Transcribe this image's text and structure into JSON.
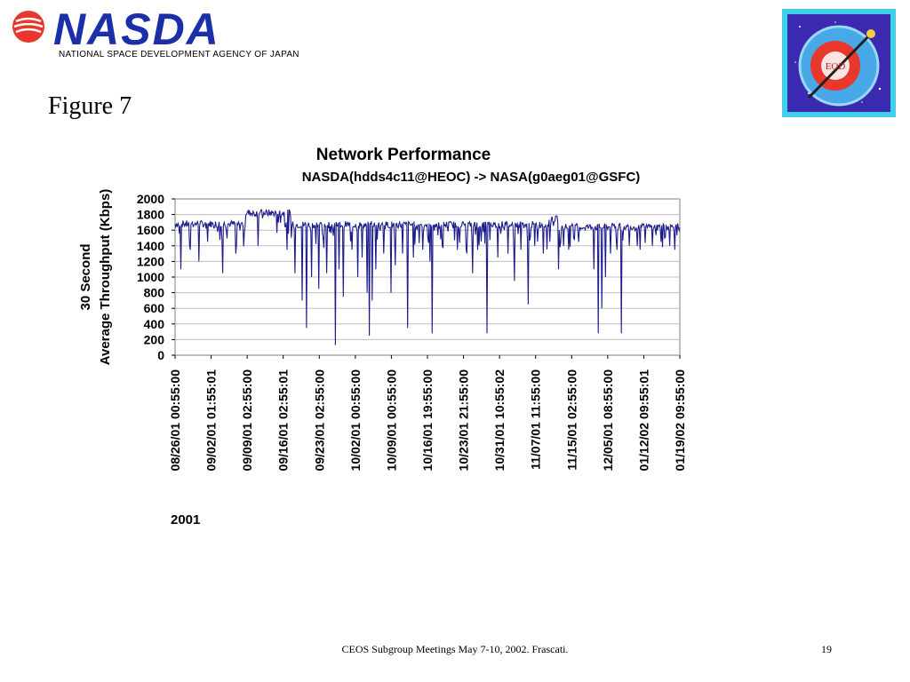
{
  "header": {
    "logo_text": "NASDA",
    "agency_name": "NATIONAL SPACE DEVELOPMENT AGENCY OF JAPAN",
    "badge_text": "EOD",
    "figure_label": "Figure 7"
  },
  "colors": {
    "logo_blue": "#1a2fa8",
    "logo_red": "#e8382c",
    "series_line": "#1c1c8a",
    "plot_border": "#808080",
    "gridline": "#c0c0c0",
    "badge_bg": "#3a2ab0",
    "badge_frame": "#3fd0e8"
  },
  "chart_data": {
    "type": "line",
    "title": "Network Performance",
    "subtitle": "NASDA(hdds4c11@HEOC) -> NASA(g0aeg01@GSFC)",
    "ylabel_line1": "30 Second",
    "ylabel_line2": "Average Throughput (Kbps)",
    "xlabel": "2001",
    "ylim": [
      0,
      2000
    ],
    "yticks": [
      0,
      200,
      400,
      600,
      800,
      1000,
      1200,
      1400,
      1600,
      1800,
      2000
    ],
    "grid": true,
    "x_tick_labels": [
      "08/26/01 00:55:00",
      "09/02/01 01:55:01",
      "09/09/01 02:55:00",
      "09/16/01 02:55:01",
      "09/23/01 02:55:00",
      "10/02/01 00:55:00",
      "10/09/01 00:55:00",
      "10/16/01 19:55:00",
      "10/23/01 21:55:00",
      "10/31/01 10:55:02",
      "11/07/01 11:55:00",
      "11/15/01 02:55:00",
      "12/05/01 08:55:00",
      "01/12/02 09:55:01",
      "01/19/02 09:55:00"
    ],
    "baseline_segments": [
      {
        "start": 0.0,
        "end": 0.14,
        "value": 1680
      },
      {
        "start": 0.14,
        "end": 0.23,
        "value": 1820
      },
      {
        "start": 0.23,
        "end": 0.74,
        "value": 1670
      },
      {
        "start": 0.74,
        "end": 0.76,
        "value": 1740
      },
      {
        "start": 0.76,
        "end": 1.0,
        "value": 1640
      }
    ],
    "dips": [
      {
        "pos": 0.012,
        "value": 1100
      },
      {
        "pos": 0.03,
        "value": 1350
      },
      {
        "pos": 0.047,
        "value": 1200
      },
      {
        "pos": 0.065,
        "value": 1450
      },
      {
        "pos": 0.095,
        "value": 1050
      },
      {
        "pos": 0.12,
        "value": 1300
      },
      {
        "pos": 0.165,
        "value": 1400
      },
      {
        "pos": 0.222,
        "value": 1350
      },
      {
        "pos": 0.238,
        "value": 1050
      },
      {
        "pos": 0.252,
        "value": 700
      },
      {
        "pos": 0.26,
        "value": 350
      },
      {
        "pos": 0.27,
        "value": 1000
      },
      {
        "pos": 0.285,
        "value": 850
      },
      {
        "pos": 0.3,
        "value": 1050
      },
      {
        "pos": 0.318,
        "value": 130
      },
      {
        "pos": 0.325,
        "value": 1100
      },
      {
        "pos": 0.333,
        "value": 750
      },
      {
        "pos": 0.35,
        "value": 1350
      },
      {
        "pos": 0.362,
        "value": 1000
      },
      {
        "pos": 0.37,
        "value": 1250
      },
      {
        "pos": 0.38,
        "value": 800
      },
      {
        "pos": 0.385,
        "value": 250
      },
      {
        "pos": 0.39,
        "value": 700
      },
      {
        "pos": 0.398,
        "value": 1100
      },
      {
        "pos": 0.413,
        "value": 1300
      },
      {
        "pos": 0.428,
        "value": 800
      },
      {
        "pos": 0.437,
        "value": 1150
      },
      {
        "pos": 0.45,
        "value": 1300
      },
      {
        "pos": 0.46,
        "value": 350
      },
      {
        "pos": 0.472,
        "value": 1250
      },
      {
        "pos": 0.49,
        "value": 1350
      },
      {
        "pos": 0.505,
        "value": 1200
      },
      {
        "pos": 0.51,
        "value": 280
      },
      {
        "pos": 0.53,
        "value": 1400
      },
      {
        "pos": 0.56,
        "value": 1350
      },
      {
        "pos": 0.578,
        "value": 1300
      },
      {
        "pos": 0.59,
        "value": 1050
      },
      {
        "pos": 0.6,
        "value": 1350
      },
      {
        "pos": 0.618,
        "value": 280
      },
      {
        "pos": 0.64,
        "value": 1250
      },
      {
        "pos": 0.66,
        "value": 1300
      },
      {
        "pos": 0.672,
        "value": 950
      },
      {
        "pos": 0.685,
        "value": 1350
      },
      {
        "pos": 0.7,
        "value": 650
      },
      {
        "pos": 0.712,
        "value": 1400
      },
      {
        "pos": 0.73,
        "value": 1300
      },
      {
        "pos": 0.742,
        "value": 1450
      },
      {
        "pos": 0.76,
        "value": 1100
      },
      {
        "pos": 0.77,
        "value": 1400
      },
      {
        "pos": 0.78,
        "value": 1350
      },
      {
        "pos": 0.8,
        "value": 1450
      },
      {
        "pos": 0.83,
        "value": 1100
      },
      {
        "pos": 0.838,
        "value": 280
      },
      {
        "pos": 0.845,
        "value": 600
      },
      {
        "pos": 0.852,
        "value": 1000
      },
      {
        "pos": 0.862,
        "value": 1300
      },
      {
        "pos": 0.875,
        "value": 1350
      },
      {
        "pos": 0.884,
        "value": 280
      },
      {
        "pos": 0.9,
        "value": 1400
      },
      {
        "pos": 0.922,
        "value": 1350
      },
      {
        "pos": 0.945,
        "value": 1400
      },
      {
        "pos": 0.963,
        "value": 1450
      },
      {
        "pos": 0.98,
        "value": 1400
      },
      {
        "pos": 0.99,
        "value": 1350
      }
    ]
  },
  "footer": {
    "text": "CEOS Subgroup Meetings  May 7-10, 2002.  Frascati.",
    "page_number": "19"
  }
}
